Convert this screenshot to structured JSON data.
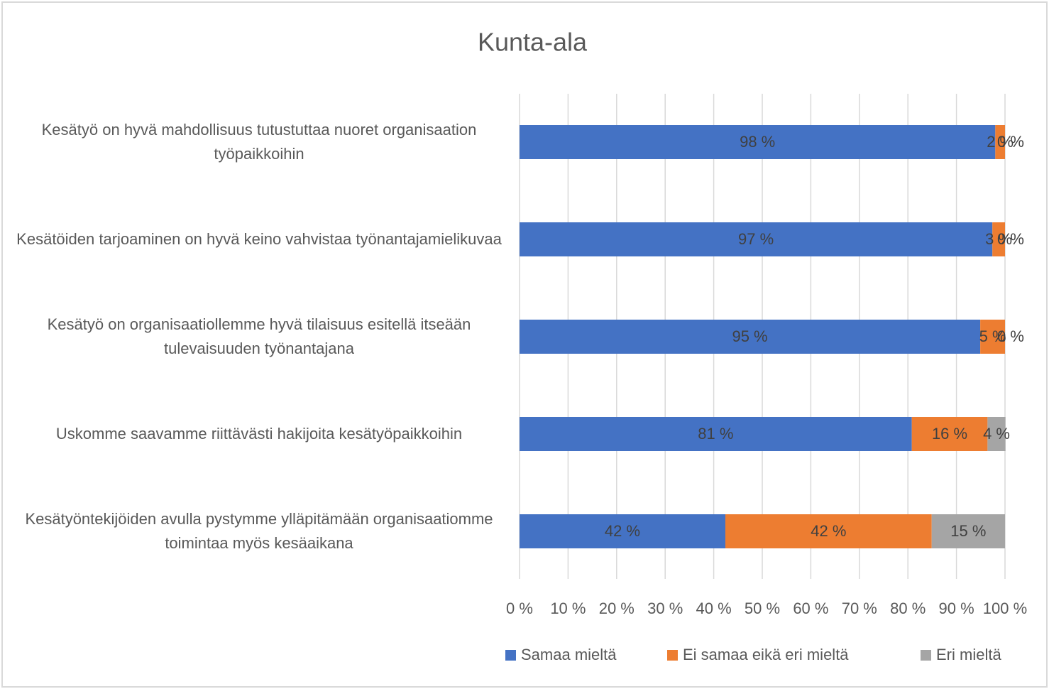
{
  "chart_data": {
    "type": "stacked-bar-horizontal",
    "title": "Kunta-ala",
    "categories": [
      "Kesätyö on hyvä mahdollisuus tutustuttaa nuoret organisaation työpaikkoihin",
      "Kesätöiden tarjoaminen on hyvä keino vahvistaa työnantajamielikuvaa",
      "Kesätyö on organisaatiollemme hyvä tilaisuus esitellä itseään tulevaisuuden työnantajana",
      "Uskomme saavamme riittävästi hakijoita kesätyöpaikkoihin",
      "Kesätyöntekijöiden avulla pystymme ylläpitämään organisaatiomme toimintaa myös kesäaikana"
    ],
    "series": [
      {
        "name": "Samaa mieltä",
        "color": "#4472c4",
        "values": [
          98.0,
          97.4,
          94.9,
          80.8,
          42.4
        ],
        "value_labels": [
          "98 %",
          "97 %",
          "95 %",
          "81 %",
          "42 %"
        ]
      },
      {
        "name": "Ei samaa eikä eri mieltä",
        "color": "#ed7d31",
        "values": [
          2.0,
          2.6,
          5.1,
          15.6,
          42.5
        ],
        "value_labels": [
          "2 %",
          "3 %",
          "5 %",
          "16 %",
          "42 %"
        ]
      },
      {
        "name": "Eri mieltä",
        "color": "#a5a5a5",
        "values": [
          0,
          0,
          0,
          3.7,
          15.1
        ],
        "value_labels": [
          "0 %",
          "0 %",
          "0 %",
          "4 %",
          "15 %"
        ]
      }
    ],
    "xlim": [
      0,
      100
    ],
    "xticks": [
      {
        "value": 0,
        "label": "0 %"
      },
      {
        "value": 10,
        "label": "10 %"
      },
      {
        "value": 20,
        "label": "20 %"
      },
      {
        "value": 30,
        "label": "30 %"
      },
      {
        "value": 40,
        "label": "40 %"
      },
      {
        "value": 50,
        "label": "50 %"
      },
      {
        "value": 60,
        "label": "60 %"
      },
      {
        "value": 70,
        "label": "70 %"
      },
      {
        "value": 80,
        "label": "80 %"
      },
      {
        "value": 90,
        "label": "90 %"
      },
      {
        "value": 100,
        "label": "100 %"
      }
    ],
    "grid": true,
    "legend": "bottom"
  }
}
